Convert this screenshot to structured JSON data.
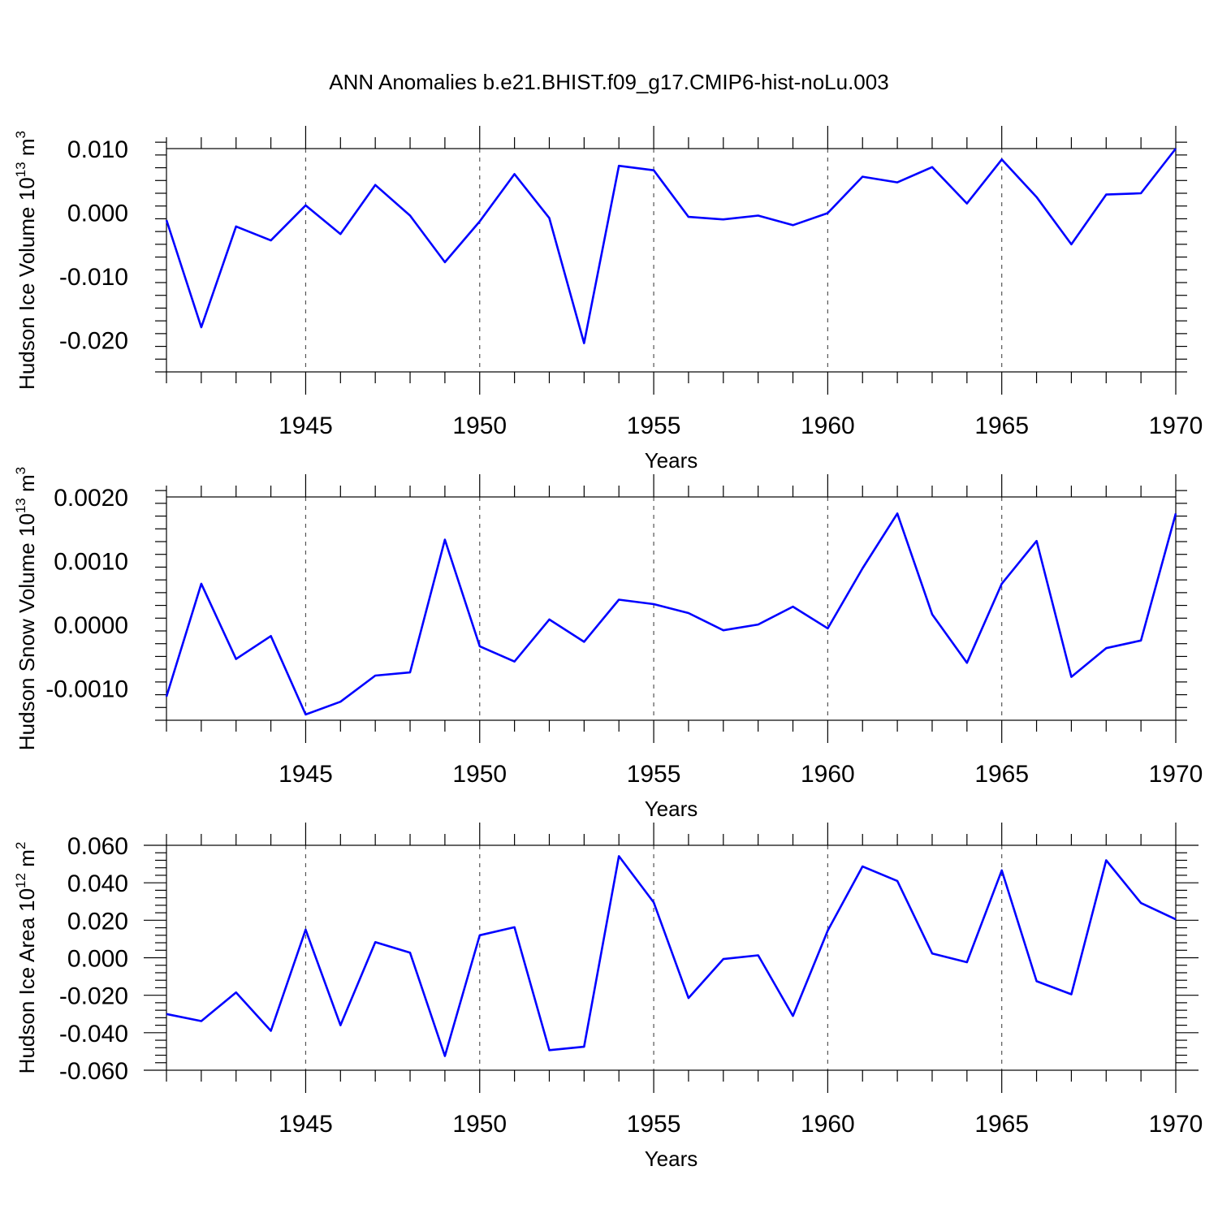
{
  "title": "ANN Anomalies b.e21.BHIST.f09_g17.CMIP6-hist-noLu.003",
  "chart_data": [
    {
      "type": "line",
      "ylabel_main": "Hudson Ice Volume 10",
      "ylabel_exp": "13",
      "ylabel_unit": " m",
      "ylabel_unit_exp": "3",
      "xlabel": "Years",
      "xlim": [
        1941,
        1970
      ],
      "ylim": [
        -0.025,
        0.01
      ],
      "yticks": [
        0.01,
        0.0,
        -0.01,
        -0.02
      ],
      "ytick_labels": [
        "0.010",
        "0.000",
        "-0.010",
        "-0.020"
      ],
      "xticks": [
        1945,
        1950,
        1955,
        1960,
        1965,
        1970
      ],
      "xtick_labels": [
        "1945",
        "1950",
        "1955",
        "1960",
        "1965",
        "1970"
      ],
      "grid": "dashed vertical at 1945, 1950, 1955, 1960, 1965",
      "color": "#0000ff",
      "x": [
        1941,
        1942,
        1943,
        1944,
        1945,
        1946,
        1947,
        1948,
        1949,
        1950,
        1951,
        1952,
        1953,
        1954,
        1955,
        1956,
        1957,
        1958,
        1959,
        1960,
        1961,
        1962,
        1963,
        1964,
        1965,
        1966,
        1967,
        1968,
        1969,
        1970
      ],
      "values": [
        -0.0012,
        -0.018,
        -0.0022,
        -0.0044,
        0.0011,
        -0.0034,
        0.0043,
        -0.0005,
        -0.0078,
        -0.0014,
        0.006,
        -0.0009,
        -0.0205,
        0.0073,
        0.0066,
        -0.0007,
        -0.0011,
        -0.0005,
        -0.002,
        -0.0001,
        0.0056,
        0.0047,
        0.0071,
        0.0014,
        0.0083,
        0.0024,
        -0.005,
        0.0028,
        0.003,
        0.01
      ]
    },
    {
      "type": "line",
      "ylabel_main": "Hudson Snow Volume 10",
      "ylabel_exp": "13",
      "ylabel_unit": " m",
      "ylabel_unit_exp": "3",
      "xlabel": "Years",
      "xlim": [
        1941,
        1970
      ],
      "ylim": [
        -0.0015,
        0.002
      ],
      "yticks": [
        0.002,
        0.001,
        0.0,
        -0.001
      ],
      "ytick_labels": [
        "0.0020",
        "0.0010",
        "0.0000",
        "-0.0010"
      ],
      "xticks": [
        1945,
        1950,
        1955,
        1960,
        1965,
        1970
      ],
      "xtick_labels": [
        "1945",
        "1950",
        "1955",
        "1960",
        "1965",
        "1970"
      ],
      "grid": "dashed vertical at 1945, 1950, 1955, 1960, 1965",
      "color": "#0000ff",
      "x": [
        1941,
        1942,
        1943,
        1944,
        1945,
        1946,
        1947,
        1948,
        1949,
        1950,
        1951,
        1952,
        1953,
        1954,
        1955,
        1956,
        1957,
        1958,
        1959,
        1960,
        1961,
        1962,
        1963,
        1964,
        1965,
        1966,
        1967,
        1968,
        1969,
        1970
      ],
      "values": [
        -0.00113,
        0.00064,
        -0.00054,
        -0.00018,
        -0.00141,
        -0.00121,
        -0.0008,
        -0.00075,
        0.00133,
        -0.00034,
        -0.00058,
        8e-05,
        -0.00027,
        0.00039,
        0.00032,
        0.00018,
        -9e-05,
        0.0,
        0.00028,
        -6e-05,
        0.00088,
        0.00174,
        0.00016,
        -0.0006,
        0.00064,
        0.00131,
        -0.00082,
        -0.00037,
        -0.00025,
        0.00174
      ]
    },
    {
      "type": "line",
      "ylabel_main": "Hudson Ice Area 10",
      "ylabel_exp": "12",
      "ylabel_unit": " m",
      "ylabel_unit_exp": "2",
      "xlabel": "Years",
      "xlim": [
        1941,
        1970
      ],
      "ylim": [
        -0.06,
        0.06
      ],
      "yticks": [
        0.06,
        0.04,
        0.02,
        0.0,
        -0.02,
        -0.04,
        -0.06
      ],
      "ytick_labels": [
        "0.060",
        "0.040",
        "0.020",
        "0.000",
        "-0.020",
        "-0.040",
        "-0.060"
      ],
      "xticks": [
        1945,
        1950,
        1955,
        1960,
        1965,
        1970
      ],
      "xtick_labels": [
        "1945",
        "1950",
        "1955",
        "1960",
        "1965",
        "1970"
      ],
      "grid": "dashed vertical at 1945, 1950, 1955, 1960, 1965",
      "color": "#0000ff",
      "x": [
        1941,
        1942,
        1943,
        1944,
        1945,
        1946,
        1947,
        1948,
        1949,
        1950,
        1951,
        1952,
        1953,
        1954,
        1955,
        1956,
        1957,
        1958,
        1959,
        1960,
        1961,
        1962,
        1963,
        1964,
        1965,
        1966,
        1967,
        1968,
        1969,
        1970
      ],
      "values": [
        -0.03,
        -0.0338,
        -0.0185,
        -0.039,
        0.015,
        -0.036,
        0.0083,
        0.0027,
        -0.0524,
        0.012,
        0.0163,
        -0.0493,
        -0.0475,
        0.0542,
        0.0295,
        -0.0215,
        -0.0007,
        0.0013,
        -0.031,
        0.0145,
        0.0487,
        0.041,
        0.0023,
        -0.0024,
        0.0466,
        -0.0125,
        -0.0195,
        0.052,
        0.0292,
        0.0205
      ]
    }
  ]
}
